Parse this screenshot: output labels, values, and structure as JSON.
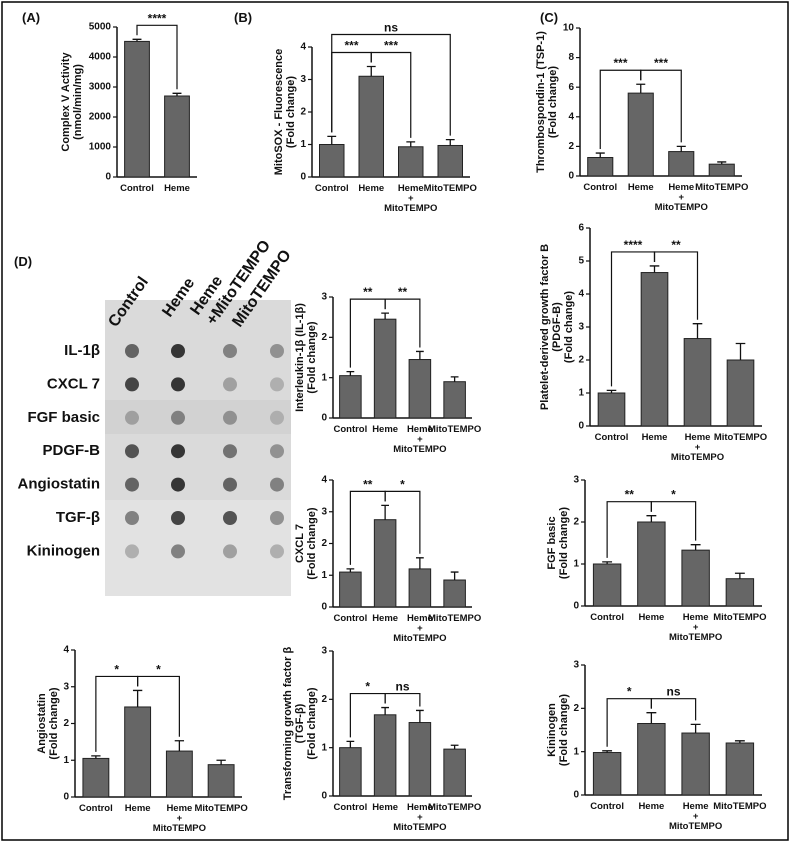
{
  "chart_data": [
    {
      "type": "bar",
      "panel_label": "(A)",
      "ylabel": [
        "Complex V Activity",
        "(nmol/min/mg)"
      ],
      "categories": [
        "Control",
        "Heme"
      ],
      "values": [
        4520,
        2700
      ],
      "errors": [
        70,
        90
      ],
      "color": "#666666",
      "ylim": [
        0,
        5000
      ],
      "yticks": [
        0,
        1000,
        2000,
        3000,
        4000,
        5000
      ],
      "annotations": [
        {
          "pair": [
            0,
            1
          ],
          "label": "****"
        }
      ]
    },
    {
      "type": "bar",
      "panel_label": "(B)",
      "ylabel": [
        "MitoSOX - Fluorescence",
        "(Fold change)"
      ],
      "categories": [
        "Control",
        "Heme",
        [
          "Heme",
          "+",
          "MitoTEMPO"
        ],
        "MitoTEMPO"
      ],
      "values": [
        1.0,
        3.1,
        0.93,
        0.97
      ],
      "errors": [
        0.25,
        0.3,
        0.15,
        0.18
      ],
      "color": "#666666",
      "ylim": [
        0,
        4
      ],
      "yticks": [
        0,
        1,
        2,
        3,
        4
      ],
      "annotations": [
        {
          "pair": [
            0,
            1
          ],
          "label": "***"
        },
        {
          "pair": [
            1,
            2
          ],
          "label": "***"
        },
        {
          "pair": [
            0,
            3
          ],
          "label": "ns"
        }
      ]
    },
    {
      "type": "bar",
      "panel_label": "(C)",
      "ylabel": [
        "Thrombospondin-1 (TSP-1)",
        "(Fold change)"
      ],
      "categories": [
        "Control",
        "Heme",
        [
          "Heme",
          "+",
          "MitoTEMPO"
        ],
        "MitoTEMPO"
      ],
      "values": [
        1.25,
        5.6,
        1.65,
        0.8
      ],
      "errors": [
        0.3,
        0.6,
        0.35,
        0.15
      ],
      "color": "#666666",
      "ylim": [
        0,
        10
      ],
      "yticks": [
        0,
        2,
        4,
        6,
        8,
        10
      ],
      "annotations": [
        {
          "pair": [
            0,
            1
          ],
          "label": "***"
        },
        {
          "pair": [
            1,
            2
          ],
          "label": "***"
        }
      ]
    },
    {
      "type": "bar",
      "ylabel": [
        "Interleukin-1β (IL-1β)",
        "(Fold change)"
      ],
      "categories": [
        "Control",
        "Heme",
        [
          "Heme",
          "+",
          "MitoTEMPO"
        ],
        "MitoTEMPO"
      ],
      "values": [
        1.05,
        2.45,
        1.45,
        0.9
      ],
      "errors": [
        0.1,
        0.15,
        0.2,
        0.12
      ],
      "color": "#666666",
      "ylim": [
        0,
        3
      ],
      "yticks": [
        0,
        1,
        2,
        3
      ],
      "annotations": [
        {
          "pair": [
            0,
            1
          ],
          "label": "**"
        },
        {
          "pair": [
            1,
            2
          ],
          "label": "**"
        }
      ]
    },
    {
      "type": "bar",
      "ylabel": [
        "Platelet-derived growth factor B",
        "(PDGF-B)",
        "(Fold change)"
      ],
      "categories": [
        "Control",
        "Heme",
        [
          "Heme",
          "+",
          "MitoTEMPO"
        ],
        "MitoTEMPO"
      ],
      "values": [
        1.0,
        4.65,
        2.65,
        2.0
      ],
      "errors": [
        0.08,
        0.2,
        0.45,
        0.5
      ],
      "color": "#666666",
      "ylim": [
        0,
        6
      ],
      "yticks": [
        0,
        1,
        2,
        3,
        4,
        5,
        6
      ],
      "annotations": [
        {
          "pair": [
            0,
            1
          ],
          "label": "****"
        },
        {
          "pair": [
            1,
            2
          ],
          "label": "**"
        }
      ]
    },
    {
      "type": "bar",
      "ylabel": [
        "CXCL 7",
        "(Fold change)"
      ],
      "categories": [
        "Control",
        "Heme",
        [
          "Heme",
          "+",
          "MitoTEMPO"
        ],
        "MitoTEMPO"
      ],
      "values": [
        1.1,
        2.75,
        1.2,
        0.85
      ],
      "errors": [
        0.1,
        0.45,
        0.35,
        0.25
      ],
      "color": "#666666",
      "ylim": [
        0,
        4
      ],
      "yticks": [
        0,
        1,
        2,
        3,
        4
      ],
      "annotations": [
        {
          "pair": [
            0,
            1
          ],
          "label": "**"
        },
        {
          "pair": [
            1,
            2
          ],
          "label": "*"
        }
      ]
    },
    {
      "type": "bar",
      "ylabel": [
        "FGF basic",
        "(Fold change)"
      ],
      "categories": [
        "Control",
        "Heme",
        [
          "Heme",
          "+",
          "MitoTEMPO"
        ],
        "MitoTEMPO"
      ],
      "values": [
        1.0,
        2.0,
        1.33,
        0.65
      ],
      "errors": [
        0.05,
        0.15,
        0.13,
        0.13
      ],
      "color": "#666666",
      "ylim": [
        0,
        3
      ],
      "yticks": [
        0,
        1,
        2,
        3
      ],
      "annotations": [
        {
          "pair": [
            0,
            1
          ],
          "label": "**"
        },
        {
          "pair": [
            1,
            2
          ],
          "label": "*"
        }
      ]
    },
    {
      "type": "bar",
      "ylabel": [
        "Angiostatin",
        "(Fold change)"
      ],
      "categories": [
        "Control",
        "Heme",
        [
          "Heme",
          "+",
          "MitoTEMPO"
        ],
        "MitoTEMPO"
      ],
      "values": [
        1.05,
        2.45,
        1.25,
        0.88
      ],
      "errors": [
        0.07,
        0.45,
        0.28,
        0.12
      ],
      "color": "#666666",
      "ylim": [
        0,
        4
      ],
      "yticks": [
        0,
        1,
        2,
        3,
        4
      ],
      "annotations": [
        {
          "pair": [
            0,
            1
          ],
          "label": "*"
        },
        {
          "pair": [
            1,
            2
          ],
          "label": "*"
        }
      ]
    },
    {
      "type": "bar",
      "ylabel": [
        "Transforming growth factor β",
        "(TGF-β)",
        "(Fold change)"
      ],
      "categories": [
        "Control",
        "Heme",
        [
          "Heme",
          "+",
          "MitoTEMPO"
        ],
        "MitoTEMPO"
      ],
      "values": [
        1.0,
        1.68,
        1.52,
        0.97
      ],
      "errors": [
        0.13,
        0.15,
        0.25,
        0.08
      ],
      "color": "#666666",
      "ylim": [
        0,
        3
      ],
      "yticks": [
        0,
        1,
        2,
        3
      ],
      "annotations": [
        {
          "pair": [
            0,
            1
          ],
          "label": "*"
        },
        {
          "pair": [
            1,
            2
          ],
          "label": "ns"
        }
      ]
    },
    {
      "type": "bar",
      "ylabel": [
        "Kininogen",
        "(Fold change)"
      ],
      "categories": [
        "Control",
        "Heme",
        [
          "Heme",
          "+",
          "MitoTEMPO"
        ],
        "MitoTEMPO"
      ],
      "values": [
        0.98,
        1.65,
        1.43,
        1.2
      ],
      "errors": [
        0.04,
        0.25,
        0.2,
        0.05
      ],
      "color": "#666666",
      "ylim": [
        0,
        3
      ],
      "yticks": [
        0,
        1,
        2,
        3
      ],
      "annotations": [
        {
          "pair": [
            0,
            1
          ],
          "label": "*"
        },
        {
          "pair": [
            1,
            2
          ],
          "label": "ns"
        }
      ]
    }
  ],
  "blot": {
    "panel_label": "(D)",
    "columns": [
      "Control",
      "Heme",
      [
        "Heme",
        "+MitoTEMPO"
      ],
      "MitoTEMPO"
    ],
    "rows": [
      "IL-1β",
      "CXCL 7",
      "FGF basic",
      "PDGF-B",
      "Angiostatin",
      "TGF-β",
      "Kininogen"
    ]
  }
}
